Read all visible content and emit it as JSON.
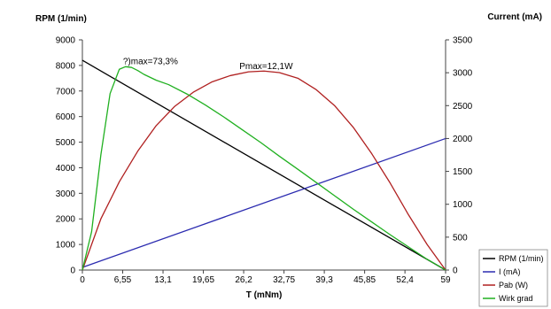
{
  "chart_data": {
    "type": "line",
    "title": "",
    "xlabel": "T (mNm)",
    "ylabel_left": "RPM (1/min)",
    "ylabel_right": "Current (mA)",
    "xlim": [
      0,
      59
    ],
    "ylim_left": [
      0,
      9000
    ],
    "ylim_right": [
      0,
      3500
    ],
    "x_ticks": [
      0,
      6.55,
      13.1,
      19.65,
      26.2,
      32.75,
      39.3,
      45.85,
      52.4,
      59
    ],
    "x_tick_labels": [
      "0",
      "6,55",
      "13,1",
      "19,65",
      "26,2",
      "32,75",
      "39,3",
      "45,85",
      "52,4",
      "59"
    ],
    "y_left_ticks": [
      0,
      1000,
      2000,
      3000,
      4000,
      5000,
      6000,
      7000,
      8000,
      9000
    ],
    "y_right_ticks": [
      0,
      500,
      1000,
      1500,
      2000,
      2500,
      3000,
      3500
    ],
    "grid": false,
    "legend_position": "bottom-right",
    "series": [
      {
        "name": "RPM (1/min)",
        "color": "#000000",
        "axis": "left",
        "x": [
          0,
          59
        ],
        "y": [
          8200,
          0
        ]
      },
      {
        "name": "I (mA)",
        "color": "#2b2bb0",
        "axis": "right",
        "x": [
          0,
          59
        ],
        "y": [
          40,
          2000
        ]
      },
      {
        "name": "Pab (W)",
        "color": "#b02020",
        "axis": "left",
        "x": [
          0,
          3,
          6,
          9,
          12,
          15,
          18,
          21,
          24,
          27,
          29.5,
          32,
          35,
          38,
          41,
          44,
          47,
          50,
          53,
          56,
          59
        ],
        "y": [
          0,
          2000,
          3450,
          4650,
          5650,
          6400,
          6950,
          7350,
          7600,
          7750,
          7780,
          7720,
          7500,
          7050,
          6420,
          5580,
          4550,
          3400,
          2150,
          1000,
          0
        ]
      },
      {
        "name": "Wirk grad",
        "color": "#20b020",
        "axis": "left",
        "x": [
          0,
          1.5,
          3,
          4.5,
          6,
          7,
          8,
          9,
          10,
          12,
          14,
          17,
          20,
          23,
          26,
          29,
          32,
          35,
          38,
          41,
          44,
          47,
          50,
          53,
          56,
          59
        ],
        "y": [
          0,
          1500,
          4500,
          6900,
          7850,
          7950,
          7920,
          7800,
          7650,
          7420,
          7250,
          6880,
          6450,
          5980,
          5480,
          4980,
          4450,
          3940,
          3420,
          2900,
          2380,
          1880,
          1380,
          900,
          420,
          0
        ]
      }
    ],
    "annotations": [
      {
        "text": "?)max=73,3%",
        "x": 6.6,
        "y": 8050,
        "axis": "left",
        "anchor": "start"
      },
      {
        "text": "Pmax=12,1W",
        "x": 25.5,
        "y": 7850,
        "axis": "left",
        "anchor": "start"
      }
    ]
  }
}
